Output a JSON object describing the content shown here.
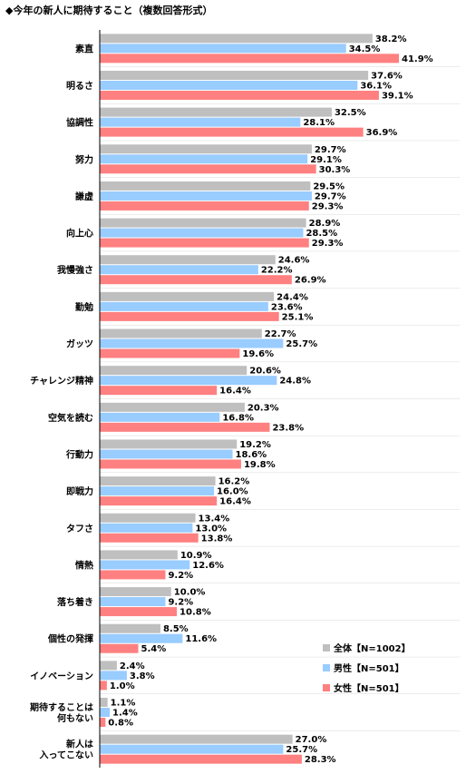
{
  "chart_data": {
    "type": "bar",
    "orientation": "horizontal",
    "title": "◆今年の新人に期待すること（複数回答形式）",
    "categories": [
      [
        "素直"
      ],
      [
        "明るさ"
      ],
      [
        "協調性"
      ],
      [
        "努力"
      ],
      [
        "謙虚"
      ],
      [
        "向上心"
      ],
      [
        "我慢強さ"
      ],
      [
        "勤勉"
      ],
      [
        "ガッツ"
      ],
      [
        "チャレンジ精神"
      ],
      [
        "空気を読む"
      ],
      [
        "行動力"
      ],
      [
        "即戦力"
      ],
      [
        "タフさ"
      ],
      [
        "情熱"
      ],
      [
        "落ち着き"
      ],
      [
        "個性の発揮"
      ],
      [
        "イノベーション"
      ],
      [
        "期待することは",
        "何もない"
      ],
      [
        "新人は",
        "入ってこない"
      ]
    ],
    "series": [
      {
        "name": "全体【N=1002】",
        "color": "#bfbfbf",
        "values": [
          38.2,
          37.6,
          32.5,
          29.7,
          29.5,
          28.9,
          24.6,
          24.4,
          22.7,
          20.6,
          20.3,
          19.2,
          16.2,
          13.4,
          10.9,
          10.0,
          8.5,
          2.4,
          1.1,
          27.0
        ]
      },
      {
        "name": "男性【N=501】",
        "color": "#99ccff",
        "values": [
          34.5,
          36.1,
          28.1,
          29.1,
          29.7,
          28.5,
          22.2,
          23.6,
          25.7,
          24.8,
          16.8,
          18.6,
          16.0,
          13.0,
          12.6,
          9.2,
          11.6,
          3.8,
          1.4,
          25.7
        ]
      },
      {
        "name": "女性【N=501】",
        "color": "#ff8080",
        "values": [
          41.9,
          39.1,
          36.9,
          30.3,
          29.3,
          29.3,
          26.9,
          25.1,
          19.6,
          16.4,
          23.8,
          19.8,
          16.4,
          13.8,
          9.2,
          10.8,
          5.4,
          1.0,
          0.8,
          28.3
        ]
      }
    ],
    "value_suffix": "%",
    "xlim": [
      0,
      45
    ],
    "grid": false,
    "legend_position": "bottom-right"
  }
}
